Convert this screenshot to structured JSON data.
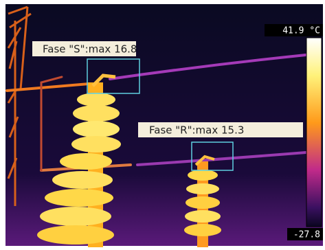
{
  "scale": {
    "max": "41.9 °C",
    "min": "-27.8"
  },
  "annotations": [
    {
      "label": "Fase \"S\":max 16.8"
    },
    {
      "label": "Fase \"R\":max 15.3"
    }
  ]
}
